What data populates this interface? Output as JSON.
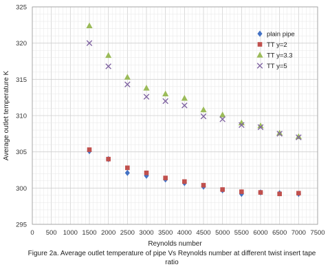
{
  "caption": "Figure 2a. Average outlet temperature of pipe Vs Reynolds number at different twist insert tape ratio",
  "chart_data": {
    "type": "scatter",
    "xlabel": "Reynolds number",
    "ylabel": "Average outlet temperature K",
    "xlim": [
      0,
      7500
    ],
    "ylim": [
      295,
      325
    ],
    "xticks": [
      0,
      500,
      1000,
      1500,
      2000,
      2500,
      3000,
      3500,
      4000,
      4500,
      5000,
      5500,
      6000,
      6500,
      7000,
      7500
    ],
    "yticks": [
      295,
      300,
      305,
      310,
      315,
      320,
      325
    ],
    "grid": true,
    "legend_position": "top-right",
    "x": [
      1500,
      2000,
      2500,
      3000,
      3500,
      4000,
      4500,
      5000,
      5500,
      6000,
      6500,
      7000
    ],
    "series": [
      {
        "name": "plain pipe",
        "marker": "diamond",
        "color": "#4472C4",
        "values": [
          305.1,
          304.0,
          302.1,
          301.7,
          301.2,
          300.7,
          300.2,
          299.7,
          299.2,
          299.4,
          299.3,
          299.2
        ]
      },
      {
        "name": "TT y=2",
        "marker": "square",
        "color": "#C0504D",
        "values": [
          305.3,
          304.0,
          302.8,
          302.1,
          301.4,
          300.9,
          300.4,
          299.8,
          299.5,
          299.4,
          299.2,
          299.3
        ]
      },
      {
        "name": "TT y=3.3",
        "marker": "triangle",
        "color": "#9BBB59",
        "values": [
          322.4,
          318.3,
          315.3,
          313.8,
          313.0,
          312.4,
          310.8,
          310.1,
          309.0,
          308.6,
          307.6,
          307.1
        ]
      },
      {
        "name": "TT y=5",
        "marker": "x",
        "color": "#8064A2",
        "values": [
          320.0,
          316.8,
          314.3,
          312.6,
          312.0,
          311.4,
          309.9,
          309.5,
          308.7,
          308.4,
          307.5,
          307.0
        ]
      }
    ]
  }
}
